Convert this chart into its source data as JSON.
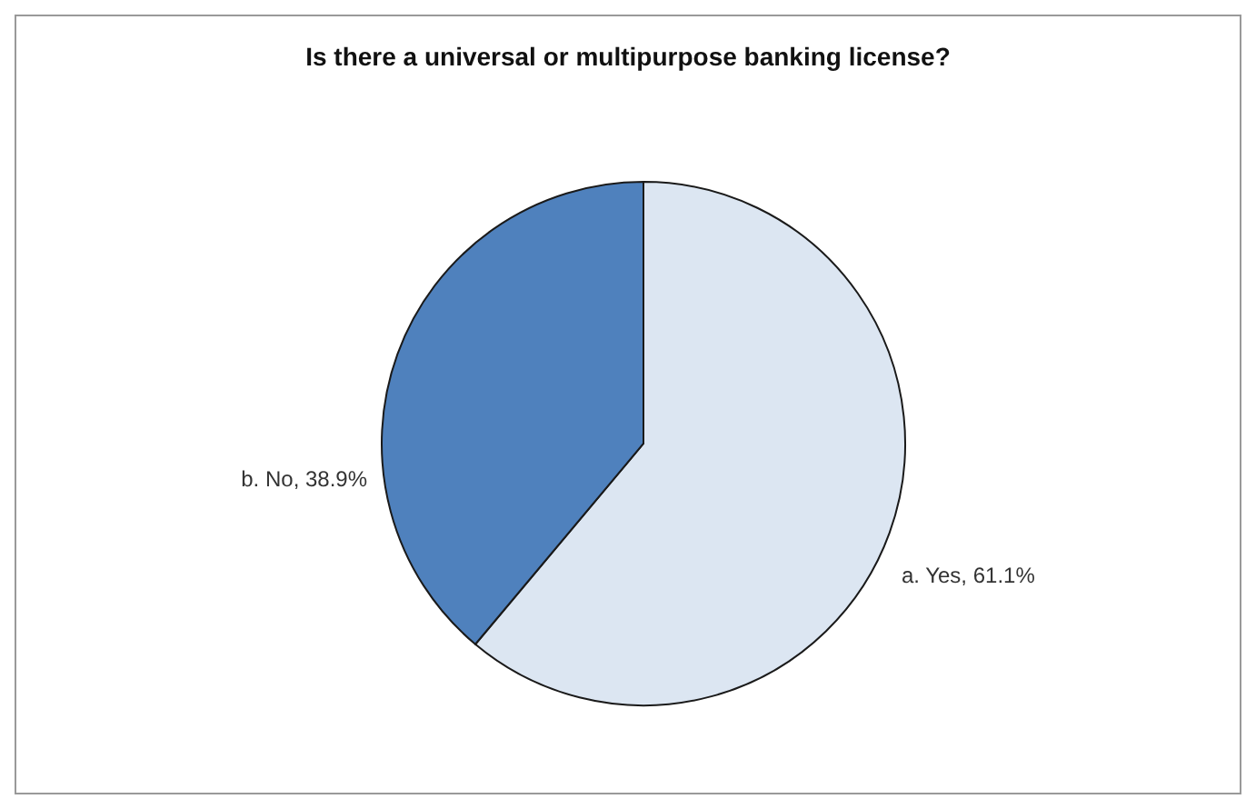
{
  "chart_data": {
    "type": "pie",
    "title": "Is there a universal or multipurpose banking license?",
    "categories": [
      "a. Yes",
      "b. No"
    ],
    "values": [
      61.1,
      38.9
    ],
    "value_labels": [
      ", 61.1%",
      ", 38.9%"
    ],
    "colors": [
      "#dce6f2",
      "#4f81bd"
    ],
    "legend": false
  }
}
